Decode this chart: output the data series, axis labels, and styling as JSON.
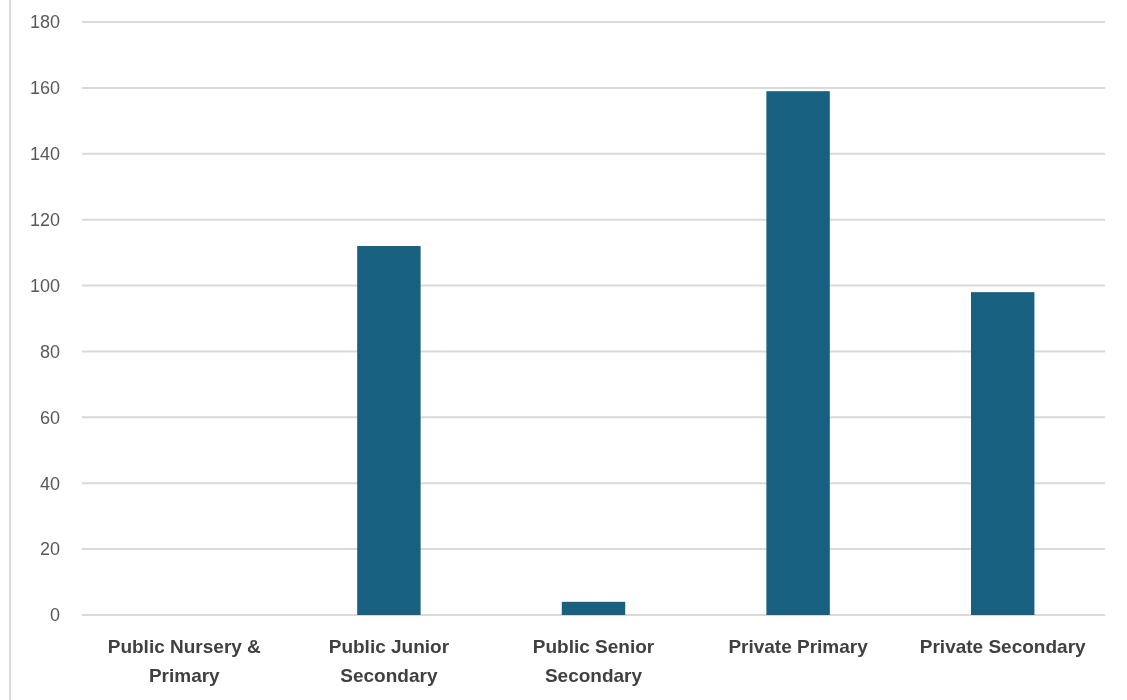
{
  "chart_data": {
    "type": "bar",
    "categories": [
      "Public Nursery & Primary",
      "Public Junior Secondary",
      "Public Senior Secondary",
      "Private Primary",
      "Private Secondary"
    ],
    "values": [
      0,
      112,
      4,
      159,
      98
    ],
    "color": "#17607f",
    "ylim": [
      0,
      180
    ],
    "yticks": [
      0,
      20,
      40,
      60,
      80,
      100,
      120,
      140,
      160,
      180
    ],
    "grid": "y"
  }
}
